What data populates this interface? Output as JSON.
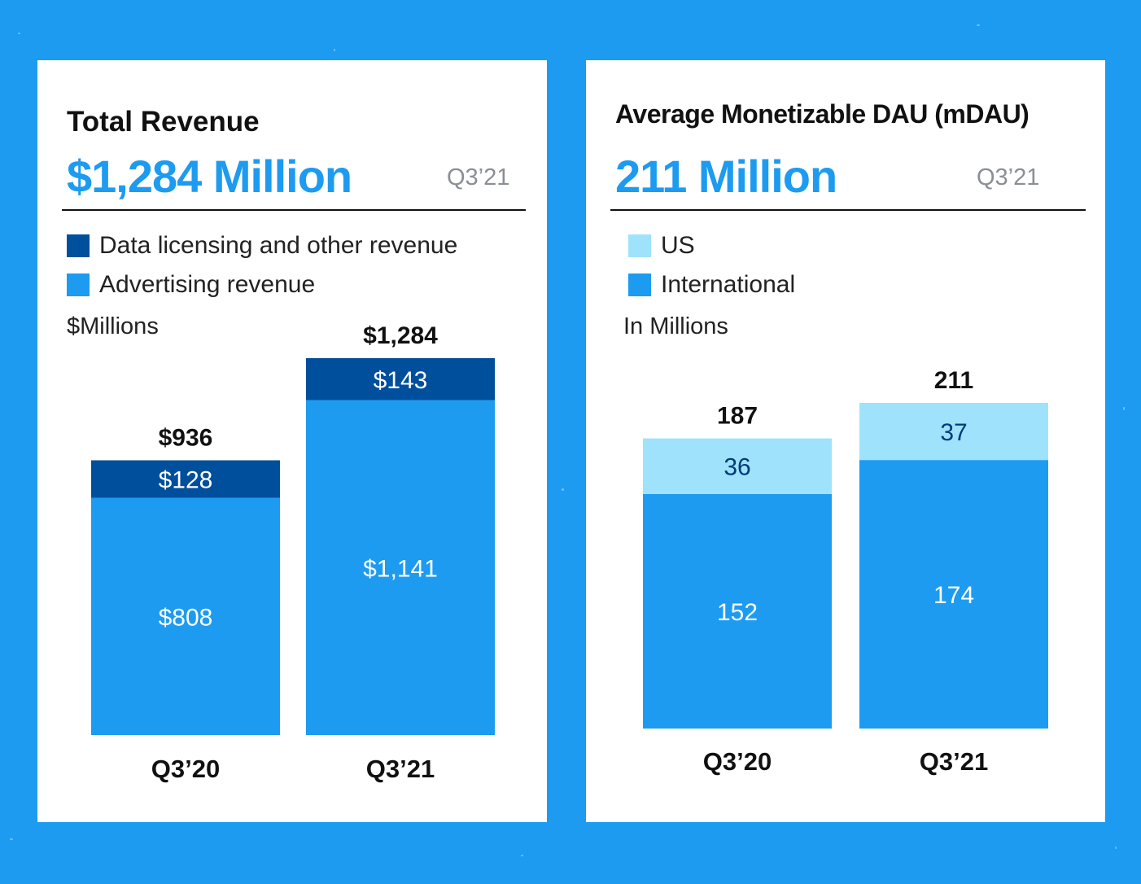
{
  "colors": {
    "background": "#1d9bf0",
    "accent": "#1d9bf0",
    "dark_blue": "#004f9c",
    "light_blue": "#9fe2fb",
    "label_on_light": "#003a78"
  },
  "revenue_panel": {
    "title": "Total Revenue",
    "headline": "$1,284 Million",
    "period": "Q3’21",
    "legend": [
      {
        "label": "Data licensing and other revenue",
        "color": "#004f9c"
      },
      {
        "label": "Advertising revenue",
        "color": "#1d9bf0"
      }
    ],
    "unit_label": "$Millions"
  },
  "dau_panel": {
    "title": "Average Monetizable DAU (mDAU)",
    "headline": "211 Million",
    "period": "Q3’21",
    "legend": [
      {
        "label": "US",
        "color": "#9fe2fb"
      },
      {
        "label": "International",
        "color": "#1d9bf0"
      }
    ],
    "unit_label": "In Millions"
  },
  "chart_data": [
    {
      "type": "bar",
      "stacked": true,
      "categories": [
        "Q3’20",
        "Q3’21"
      ],
      "series": [
        {
          "name": "Advertising revenue",
          "values": [
            808,
            1141
          ],
          "labels": [
            "$808",
            "$1,141"
          ],
          "color": "#1d9bf0"
        },
        {
          "name": "Data licensing and other revenue",
          "values": [
            128,
            143
          ],
          "labels": [
            "$128",
            "$143"
          ],
          "color": "#004f9c"
        }
      ],
      "totals": [
        936,
        1284
      ],
      "total_labels": [
        "$936",
        "$1,284"
      ],
      "ylim": [
        0,
        1284
      ]
    },
    {
      "type": "bar",
      "stacked": true,
      "categories": [
        "Q3’20",
        "Q3’21"
      ],
      "series": [
        {
          "name": "International",
          "values": [
            152,
            174
          ],
          "labels": [
            "152",
            "174"
          ],
          "color": "#1d9bf0"
        },
        {
          "name": "US",
          "values": [
            36,
            37
          ],
          "labels": [
            "36",
            "37"
          ],
          "color": "#9fe2fb"
        }
      ],
      "totals": [
        187,
        211
      ],
      "total_labels": [
        "187",
        "211"
      ],
      "ylim": [
        0,
        211
      ]
    }
  ]
}
